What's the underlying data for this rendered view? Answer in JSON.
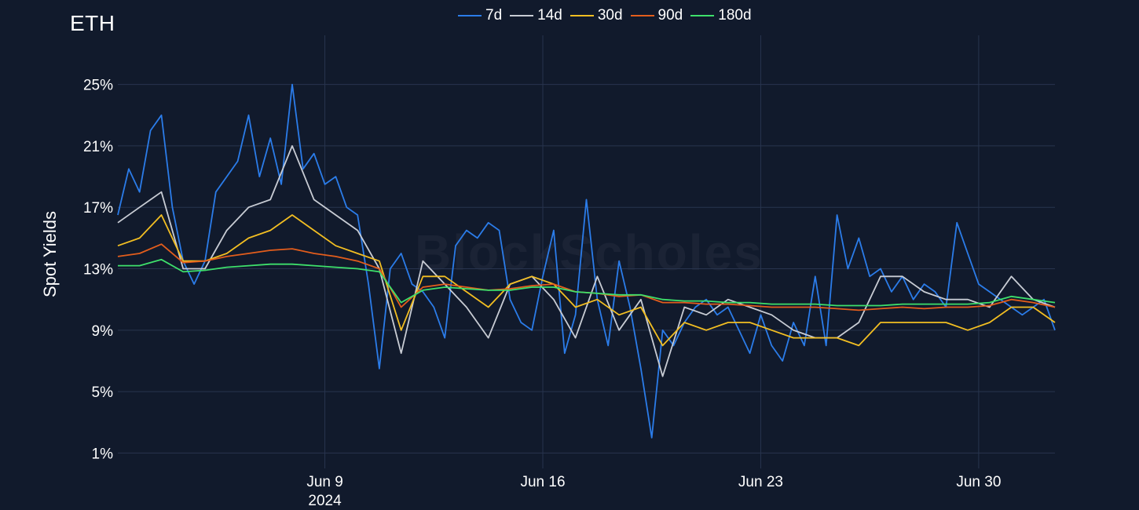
{
  "chart_data": {
    "type": "line",
    "title": "ETH",
    "ylabel": "Spot Yields",
    "xlabel": "",
    "watermark": "BlockScholes",
    "ylim": [
      0.0,
      28.2
    ],
    "y_ticks": [
      1,
      5,
      9,
      13,
      17,
      21,
      25
    ],
    "y_tick_labels": [
      "1%",
      "5%",
      "9%",
      "13%",
      "17%",
      "21%",
      "25%"
    ],
    "x_range": [
      0,
      43
    ],
    "x_ticks": [
      {
        "x": 9.5,
        "label": "Jun 9",
        "sublabel": "2024"
      },
      {
        "x": 19.5,
        "label": "Jun 16",
        "sublabel": ""
      },
      {
        "x": 29.5,
        "label": "Jun 23",
        "sublabel": ""
      },
      {
        "x": 39.5,
        "label": "Jun 30",
        "sublabel": ""
      }
    ],
    "x_unit": "x = days since start of Jun 1 2024 (UTC); Jun 9 tick at 9.5",
    "grid": true,
    "legend_position": "top-center",
    "series": [
      {
        "name": "7d",
        "color": "#2b7ce9",
        "x": [
          0,
          0.5,
          1,
          1.5,
          2,
          2.5,
          3,
          3.5,
          4,
          4.5,
          5,
          5.5,
          6,
          6.5,
          7,
          7.5,
          8,
          8.5,
          9,
          9.5,
          10,
          10.5,
          11,
          11.5,
          12,
          12.5,
          13,
          13.5,
          14,
          14.5,
          15,
          15.5,
          16,
          16.5,
          17,
          17.5,
          18,
          18.5,
          19,
          19.5,
          20,
          20.5,
          21,
          21.5,
          22,
          22.5,
          23,
          23.5,
          24,
          24.5,
          25,
          25.5,
          26,
          26.5,
          27,
          27.5,
          28,
          28.5,
          29,
          29.5,
          30,
          30.5,
          31,
          31.5,
          32,
          32.5,
          33,
          33.5,
          34,
          34.5,
          35,
          35.5,
          36,
          36.5,
          37,
          37.5,
          38,
          38.5,
          39,
          39.5,
          40,
          40.5,
          41,
          41.5,
          42,
          42.5,
          43
        ],
        "values": [
          16.5,
          19.5,
          18.0,
          22.0,
          23.0,
          17.0,
          13.5,
          12.0,
          13.5,
          18.0,
          19.0,
          20.0,
          23.0,
          19.0,
          21.5,
          18.5,
          25.0,
          19.5,
          20.5,
          18.5,
          19.0,
          17.0,
          16.5,
          12.0,
          6.5,
          13.0,
          14.0,
          12.0,
          11.5,
          10.5,
          8.5,
          14.5,
          15.5,
          15.0,
          16.0,
          15.5,
          11.0,
          9.5,
          9.0,
          12.5,
          15.5,
          7.5,
          10.0,
          17.5,
          11.0,
          8.0,
          13.5,
          10.5,
          6.5,
          2.0,
          9.0,
          8.0,
          9.5,
          10.5,
          11.0,
          10.0,
          10.5,
          9.0,
          7.5,
          10.0,
          8.0,
          7.0,
          9.5,
          8.0,
          12.5,
          8.0,
          16.5,
          13.0,
          15.0,
          12.5,
          13.0,
          11.5,
          12.5,
          11.0,
          12.0,
          11.5,
          10.5,
          16.0,
          14.0,
          12.0,
          11.5,
          11.0,
          10.5,
          10.0,
          10.5,
          11.0,
          9.0
        ]
      },
      {
        "name": "14d",
        "color": "#c8ccd4",
        "x": [
          0,
          1,
          2,
          3,
          4,
          5,
          6,
          7,
          8,
          9,
          10,
          11,
          12,
          13,
          14,
          15,
          16,
          17,
          18,
          19,
          20,
          21,
          22,
          23,
          24,
          25,
          26,
          27,
          28,
          29,
          30,
          31,
          32,
          33,
          34,
          35,
          36,
          37,
          38,
          39,
          40,
          41,
          42,
          43
        ],
        "values": [
          16.0,
          17.0,
          18.0,
          13.0,
          13.0,
          15.5,
          17.0,
          17.5,
          21.0,
          17.5,
          16.5,
          15.5,
          13.0,
          7.5,
          13.5,
          12.0,
          10.5,
          8.5,
          12.0,
          12.5,
          11.0,
          8.5,
          12.5,
          9.0,
          11.0,
          6.0,
          10.5,
          10.0,
          11.0,
          10.5,
          10.0,
          9.0,
          8.5,
          8.5,
          9.5,
          12.5,
          12.5,
          11.5,
          11.0,
          11.0,
          10.5,
          12.5,
          11.0,
          10.5
        ]
      },
      {
        "name": "30d",
        "color": "#f2be22",
        "x": [
          0,
          1,
          2,
          3,
          4,
          5,
          6,
          7,
          8,
          9,
          10,
          11,
          12,
          13,
          14,
          15,
          16,
          17,
          18,
          19,
          20,
          21,
          22,
          23,
          24,
          25,
          26,
          27,
          28,
          29,
          30,
          31,
          32,
          33,
          34,
          35,
          36,
          37,
          38,
          39,
          40,
          41,
          42,
          43
        ],
        "values": [
          14.5,
          15.0,
          16.5,
          13.5,
          13.5,
          14.0,
          15.0,
          15.5,
          16.5,
          15.5,
          14.5,
          14.0,
          13.5,
          9.0,
          12.5,
          12.5,
          11.5,
          10.5,
          12.0,
          12.5,
          12.0,
          10.5,
          11.0,
          10.0,
          10.5,
          8.0,
          9.5,
          9.0,
          9.5,
          9.5,
          9.0,
          8.5,
          8.5,
          8.5,
          8.0,
          9.5,
          9.5,
          9.5,
          9.5,
          9.0,
          9.5,
          10.5,
          10.5,
          9.5
        ]
      },
      {
        "name": "90d",
        "color": "#e35d1c",
        "x": [
          0,
          1,
          2,
          3,
          4,
          5,
          6,
          7,
          8,
          9,
          10,
          11,
          12,
          13,
          14,
          15,
          16,
          17,
          18,
          19,
          20,
          21,
          22,
          23,
          24,
          25,
          26,
          27,
          28,
          29,
          30,
          31,
          32,
          33,
          34,
          35,
          36,
          37,
          38,
          39,
          40,
          41,
          42,
          43
        ],
        "values": [
          13.8,
          14.0,
          14.6,
          13.4,
          13.5,
          13.8,
          14.0,
          14.2,
          14.3,
          14.0,
          13.8,
          13.5,
          13.0,
          10.5,
          11.8,
          12.0,
          11.8,
          11.6,
          11.7,
          11.9,
          12.0,
          11.5,
          11.4,
          11.2,
          11.3,
          10.8,
          10.8,
          10.7,
          10.7,
          10.6,
          10.5,
          10.5,
          10.5,
          10.4,
          10.3,
          10.4,
          10.5,
          10.4,
          10.5,
          10.5,
          10.6,
          11.0,
          10.8,
          10.5
        ]
      },
      {
        "name": "180d",
        "color": "#3ee06b",
        "x": [
          0,
          1,
          2,
          3,
          4,
          5,
          6,
          7,
          8,
          9,
          10,
          11,
          12,
          13,
          14,
          15,
          16,
          17,
          18,
          19,
          20,
          21,
          22,
          23,
          24,
          25,
          26,
          27,
          28,
          29,
          30,
          31,
          32,
          33,
          34,
          35,
          36,
          37,
          38,
          39,
          40,
          41,
          42,
          43
        ],
        "values": [
          13.2,
          13.2,
          13.6,
          12.8,
          12.9,
          13.1,
          13.2,
          13.3,
          13.3,
          13.2,
          13.1,
          13.0,
          12.8,
          10.8,
          11.6,
          11.8,
          11.7,
          11.6,
          11.6,
          11.8,
          11.8,
          11.5,
          11.4,
          11.3,
          11.3,
          11.0,
          10.9,
          10.9,
          10.8,
          10.8,
          10.7,
          10.7,
          10.7,
          10.6,
          10.6,
          10.6,
          10.7,
          10.7,
          10.7,
          10.7,
          10.8,
          11.2,
          11.0,
          10.8
        ]
      }
    ]
  }
}
